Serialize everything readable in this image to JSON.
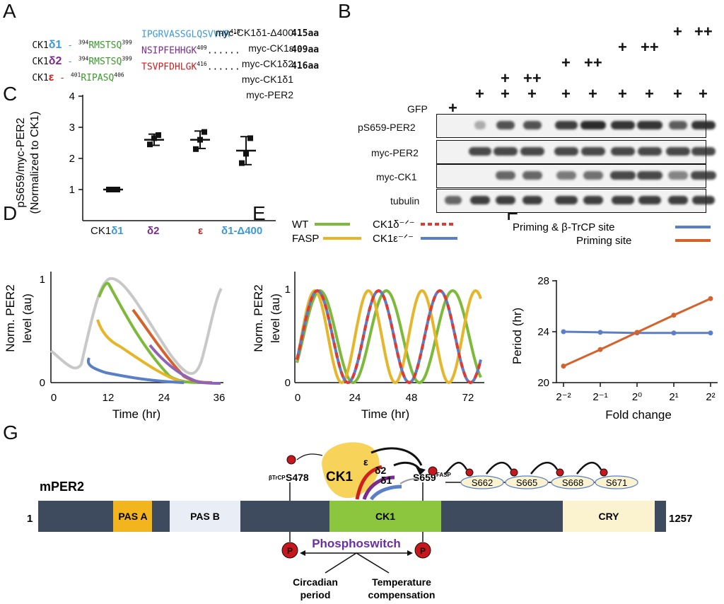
{
  "panels": {
    "a": "A",
    "b": "B",
    "c": "C",
    "d": "D",
    "e": "E",
    "f": "F",
    "g": "G"
  },
  "panel_a": {
    "rows": [
      {
        "prefix": "CK1",
        "iso": "δ1",
        "iso_color": "#3d9ad6",
        "dash": " - ",
        "n1": "394",
        "motif": "RMSTSQ",
        "n2": "399",
        "tail": "IPGRVASSGLQSVVHR",
        "n3": "415",
        "tail_color": "#3d9ad6",
        "dots": "",
        "len": "415aa"
      },
      {
        "prefix": "CK1",
        "iso": "δ2",
        "iso_color": "#7a2d8c",
        "dash": " - ",
        "n1": "394",
        "motif": "RMSTSQ",
        "n2": "399",
        "tail": "NSIPFEHHGK",
        "n3": "409",
        "tail_color": "#7a2d8c",
        "dots": "......",
        "len": "409aa"
      },
      {
        "prefix": "CK1",
        "iso": "ε",
        "iso_color": "#cc1f1f",
        "dash": " - ",
        "n1": "401",
        "motif": "RIPASQ",
        "n2": "406",
        "tail": "TSVPFDHLGK",
        "n3": "416",
        "tail_color": "#cc1f1f",
        "dots": "......",
        "len": "416aa"
      }
    ]
  },
  "panel_b": {
    "conditions": [
      "myc-CK1δ1-Δ400",
      "myc-CK1ε",
      "myc-CK1δ2",
      "myc-CK1δ1",
      "myc-PER2",
      "GFP"
    ],
    "signs": {
      "delta400": [
        "",
        "",
        "",
        "",
        "",
        "",
        "",
        "",
        "+",
        "++"
      ],
      "eps": [
        "",
        "",
        "",
        "",
        "",
        "",
        "+",
        "++",
        "",
        ""
      ],
      "d2": [
        "",
        "",
        "",
        "",
        "+",
        "++",
        "",
        "",
        "",
        ""
      ],
      "d1": [
        "",
        "",
        "+",
        "++",
        "",
        "",
        "",
        "",
        "",
        ""
      ],
      "per2": [
        "",
        "+",
        "+",
        "+",
        "+",
        "+",
        "+",
        "+",
        "+",
        "+"
      ],
      "gfp": [
        "+",
        "",
        "",
        "",
        "",
        "",
        "",
        "",
        "",
        ""
      ]
    },
    "blots": [
      "pS659-PER2",
      "myc-PER2",
      "myc-CK1",
      "tubulin"
    ]
  },
  "panel_c": {
    "ylabel_line1": "pS659/myc-PER2",
    "ylabel_line2": "(Normalized to CK1)",
    "yticks": [
      "1",
      "2",
      "3",
      "4"
    ],
    "groups": [
      {
        "label_prefix": "CK1",
        "label": "δ1",
        "color": "#3d9ad6"
      },
      {
        "label_prefix": "",
        "label": "δ2",
        "color": "#7a2d8c"
      },
      {
        "label_prefix": "",
        "label": "ε",
        "color": "#cc1f1f"
      },
      {
        "label_prefix": "",
        "label": "δ1-Δ400",
        "color": "#3d9ad6"
      }
    ],
    "chart_data": {
      "type": "scatter",
      "categories": [
        "CK1δ1",
        "δ2",
        "ε",
        "δ1-Δ400"
      ],
      "mean": [
        1.0,
        2.6,
        2.6,
        2.25
      ],
      "sd": [
        0.03,
        0.18,
        0.28,
        0.45
      ],
      "points": [
        [
          1.0,
          1.0,
          1.0
        ],
        [
          2.45,
          2.65,
          2.75
        ],
        [
          2.3,
          2.6,
          2.85
        ],
        [
          1.85,
          2.15,
          2.65
        ]
      ],
      "ylim": [
        0,
        4
      ]
    }
  },
  "panel_d": {
    "ylabel_line1": "Norm. PER2",
    "ylabel_line2": "level (au)",
    "xlabel": "Time (hr)",
    "xticks": [
      "0",
      "12",
      "24",
      "36"
    ],
    "yticks": [
      "0",
      "1"
    ]
  },
  "panel_e": {
    "ylabel_line1": "Norm. PER2",
    "ylabel_line2": "level (au)",
    "xlabel": "Time (hr)",
    "xticks": [
      "0",
      "24",
      "48",
      "72"
    ],
    "yticks": [
      "0",
      "1"
    ],
    "legend": [
      {
        "name": "WT",
        "color": "#7dba3a",
        "style": "solid"
      },
      {
        "name": "FASP",
        "color": "#e6b62a",
        "style": "solid"
      },
      {
        "name": "CK1δ⁻ᐟ⁻",
        "color": "#e23a2e",
        "style": "dashed"
      },
      {
        "name": "CK1ε⁻ᐟ⁻",
        "color": "#5b7fc7",
        "style": "solid"
      }
    ]
  },
  "panel_f": {
    "ylabel": "Period (hr)",
    "xlabel": "Fold change",
    "xticks": [
      "2⁻²",
      "2⁻¹",
      "2⁰",
      "2¹",
      "2²"
    ],
    "yticks": [
      "20",
      "24",
      "28"
    ],
    "legend": [
      {
        "name": "Priming & β-TrCP site",
        "color": "#5b7fc7"
      },
      {
        "name": "Priming site",
        "color": "#d4622a"
      }
    ],
    "chart_data": {
      "type": "line",
      "x": [
        -2,
        -1,
        0,
        1,
        2
      ],
      "series": [
        {
          "name": "Priming & β-TrCP site",
          "values": [
            24.0,
            23.95,
            23.9,
            23.9,
            23.9
          ]
        },
        {
          "name": "Priming site",
          "values": [
            21.3,
            22.6,
            23.95,
            25.3,
            26.6
          ]
        }
      ],
      "ylim": [
        20,
        28
      ]
    }
  },
  "panel_g": {
    "protein": "mPER2",
    "start": "1",
    "end": "1257",
    "domains": {
      "pasa": "PAS A",
      "pasb": "PAS B",
      "ck1": "CK1",
      "cry": "CRY"
    },
    "ck1_label": "CK1",
    "isoforms": {
      "eps": "ε",
      "d2": "δ2",
      "d1": "δ1"
    },
    "site_btrcp_sup": "βTrCP",
    "site_btrcp": "S478",
    "site_fasp": "S659",
    "site_fasp_sup": "FASP",
    "fasp_sites": [
      "S662",
      "S665",
      "S668",
      "S671"
    ],
    "p": "P",
    "switch": "Phosphoswitch",
    "out1_line1": "Circadian",
    "out1_line2": "period",
    "out2_line1": "Temperature",
    "out2_line2": "compensation"
  }
}
